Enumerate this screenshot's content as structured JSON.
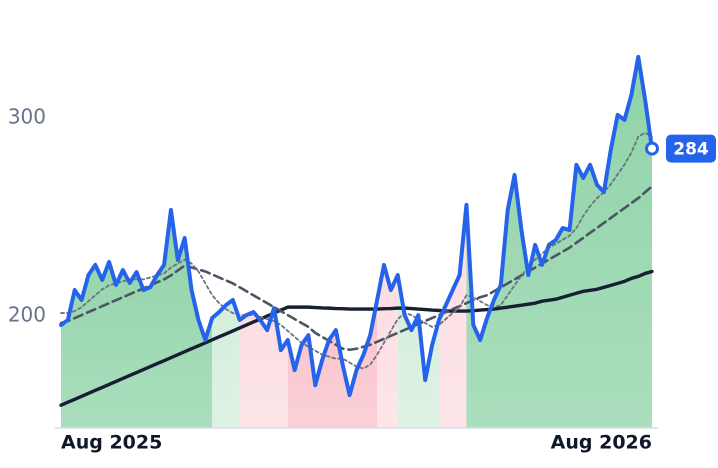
{
  "chart_data": {
    "type": "line",
    "categories": [
      "Aug 2025",
      null,
      null,
      null,
      null,
      null,
      null,
      null,
      null,
      null,
      null,
      null,
      null,
      null,
      null,
      null,
      null,
      null,
      null,
      null,
      null,
      null,
      null,
      null,
      null,
      null,
      null,
      null,
      null,
      null,
      null,
      null,
      null,
      null,
      null,
      null,
      null,
      null,
      null,
      null,
      null,
      null,
      null,
      null,
      null,
      null,
      null,
      null,
      null,
      null,
      null,
      null,
      null,
      null,
      null,
      null,
      null,
      null,
      null,
      null,
      null,
      null,
      null,
      null,
      null,
      null,
      null,
      null,
      null,
      null,
      null,
      null,
      null,
      null,
      null,
      null,
      null,
      null,
      null,
      null,
      null,
      null,
      null,
      null,
      null,
      null,
      "Aug 2026"
    ],
    "series": [
      {
        "color": "#2563eb",
        "style": "solid",
        "width": 4,
        "values": [
          195,
          197.5,
          212.6,
          207.6,
          220.2,
          225.3,
          217.7,
          226.8,
          215.2,
          222.7,
          216.2,
          221.7,
          212.6,
          214.1,
          220.2,
          225.3,
          253,
          227.8,
          238.9,
          212.6,
          197.5,
          187.4,
          198.5,
          201.5,
          205,
          207.6,
          197.5,
          200,
          201.5,
          197.5,
          192.4,
          203.5,
          182.3,
          187.4,
          172.2,
          184.8,
          189.9,
          164.6,
          177.3,
          187.4,
          192.4,
          174.7,
          159.6,
          172.2,
          179.8,
          189.9,
          207.6,
          225.3,
          212.6,
          220.2,
          200,
          192.4,
          200,
          167.2,
          184.8,
          197.5,
          205,
          212.6,
          220.2,
          255.6,
          195,
          187.4,
          198.5,
          207.6,
          215.2,
          253,
          270.7,
          242.9,
          220.2,
          235.4,
          225.3,
          235.4,
          237.9,
          243.9,
          242.9,
          275.8,
          269.2,
          275.8,
          265.7,
          262.1,
          283.3,
          301,
          298.5,
          311.1,
          330.3,
          308.6,
          284
        ]
      },
      {
        "color": "#6b7280",
        "style": "dotted",
        "width": 1.8,
        "values": [
          201,
          201,
          202,
          204,
          207,
          210,
          213,
          215,
          216,
          217,
          218,
          218,
          218,
          219,
          220,
          221,
          224,
          226,
          228,
          226,
          222,
          216,
          210,
          206,
          203,
          201,
          200,
          200,
          200,
          199,
          198,
          197,
          195,
          192,
          189,
          186,
          184,
          182,
          180,
          179,
          178,
          178,
          176,
          174,
          173,
          175,
          180,
          186,
          192,
          198,
          201,
          200,
          198,
          196,
          194,
          195,
          198,
          201,
          204,
          210,
          209,
          207,
          205,
          204,
          205,
          210,
          215,
          220,
          224,
          228,
          231,
          234,
          236,
          238,
          240,
          244,
          250,
          255,
          259,
          262,
          266,
          271,
          276,
          282,
          290,
          292,
          290
        ]
      },
      {
        "color": "#4b5563",
        "style": "dashed",
        "width": 2.6,
        "values": [
          196,
          197,
          198.5,
          200,
          201.5,
          203,
          204.5,
          206,
          207.5,
          209,
          210.5,
          212,
          213.5,
          215,
          216.5,
          218,
          220,
          222.5,
          225,
          224,
          223,
          222,
          220.5,
          219,
          217.5,
          216,
          214,
          212,
          210,
          208,
          206,
          204,
          202,
          200,
          198,
          196,
          194,
          191,
          189,
          187,
          185,
          183,
          182.5,
          183,
          184,
          185,
          186.5,
          188,
          189.5,
          191,
          192.5,
          194,
          195.5,
          197,
          198.5,
          200,
          201.5,
          203,
          204.5,
          206,
          207.5,
          209,
          210,
          212,
          214,
          216,
          218,
          220,
          222,
          224,
          226,
          228,
          230,
          232,
          234,
          236.5,
          239,
          241.5,
          244,
          246.5,
          249,
          251.5,
          254,
          256.5,
          259,
          262,
          265
        ]
      },
      {
        "color": "#172033",
        "style": "solid",
        "width": 3.4,
        "values": [
          154.5,
          156,
          157.5,
          159,
          160.5,
          162,
          163.5,
          165,
          166.5,
          168,
          169.5,
          171,
          172.5,
          174,
          175.5,
          177,
          178.5,
          180,
          181.5,
          183,
          184.5,
          186,
          187.5,
          189,
          190.5,
          192,
          193.5,
          195,
          196.5,
          198,
          199.5,
          201,
          202.5,
          204,
          204,
          204,
          204,
          203.8,
          203.6,
          203.5,
          203.3,
          203.2,
          203,
          203,
          203,
          203,
          203,
          203.2,
          203.3,
          203.5,
          203.5,
          203.3,
          203,
          202.8,
          202.5,
          202.3,
          202,
          202,
          202,
          202,
          202.2,
          202.5,
          202.8,
          203,
          203.5,
          204,
          204.5,
          205,
          205.5,
          206,
          207,
          207.5,
          208,
          209,
          210,
          211,
          212,
          212.5,
          213,
          214,
          215,
          216,
          217,
          218.5,
          219.5,
          221,
          222
        ]
      }
    ],
    "bands": [
      {
        "from": 0,
        "to": 21,
        "color": "#8fd3a8"
      },
      {
        "from": 22,
        "to": 25,
        "color": "#d4eedc"
      },
      {
        "from": 26,
        "to": 32,
        "color": "#fcdde2"
      },
      {
        "from": 33,
        "to": 45,
        "color": "#f9c1cb"
      },
      {
        "from": 46,
        "to": 48,
        "color": "#fcdde2"
      },
      {
        "from": 49,
        "to": 54,
        "color": "#d4eedc"
      },
      {
        "from": 55,
        "to": 58,
        "color": "#fcdde2"
      },
      {
        "from": 59,
        "to": 86,
        "color": "#8fd3a8"
      }
    ],
    "ylim": [
      143,
      359
    ],
    "yticks": [
      200,
      300
    ],
    "grid": false,
    "badge_color": "#2563eb"
  }
}
